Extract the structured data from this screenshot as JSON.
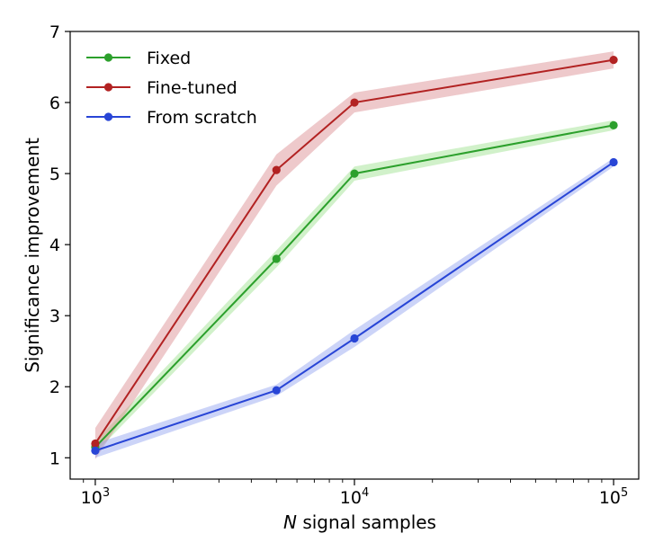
{
  "chart_data": {
    "type": "line",
    "xscale": "log",
    "x": [
      1000,
      5000,
      10000,
      100000
    ],
    "xlim": [
      800,
      125000
    ],
    "ylim": [
      0.7,
      7.0
    ],
    "xlabel_italic": "N",
    "xlabel_rest": " signal samples",
    "ylabel": "Significance improvement",
    "xticks": [
      {
        "value": 1000,
        "base": "10",
        "exp": "3"
      },
      {
        "value": 10000,
        "base": "10",
        "exp": "4"
      },
      {
        "value": 100000,
        "base": "10",
        "exp": "5"
      }
    ],
    "yticks": [
      {
        "value": 1,
        "label": "1"
      },
      {
        "value": 2,
        "label": "2"
      },
      {
        "value": 3,
        "label": "3"
      },
      {
        "value": 4,
        "label": "4"
      },
      {
        "value": 5,
        "label": "5"
      },
      {
        "value": 6,
        "label": "6"
      },
      {
        "value": 7,
        "label": "7"
      }
    ],
    "legend_position": "top-left",
    "series": [
      {
        "key": "fixed",
        "name": "Fixed",
        "color": "#2ca02c",
        "band_color": "#98df8a",
        "values": [
          1.15,
          3.8,
          5.0,
          5.68
        ],
        "err": [
          0.08,
          0.12,
          0.1,
          0.07
        ]
      },
      {
        "key": "fine-tuned",
        "name": "Fine-tuned",
        "color": "#b22222",
        "band_color": "#d9888c",
        "values": [
          1.2,
          5.05,
          6.0,
          6.6
        ],
        "err": [
          0.22,
          0.22,
          0.14,
          0.12
        ]
      },
      {
        "key": "from-scratch",
        "name": "From scratch",
        "color": "#2845d6",
        "band_color": "#8d9ff0",
        "values": [
          1.1,
          1.95,
          2.68,
          5.16
        ],
        "err": [
          0.1,
          0.08,
          0.12,
          0.06
        ]
      }
    ]
  }
}
